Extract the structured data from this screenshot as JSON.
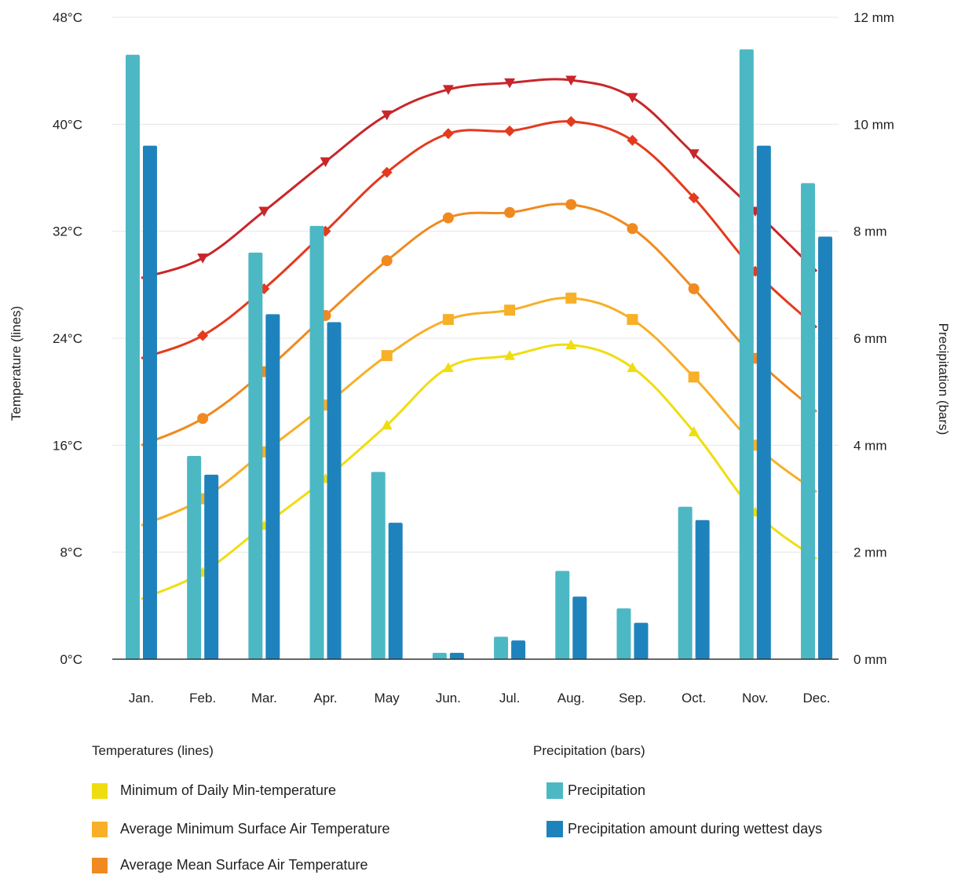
{
  "chart_data": {
    "type": "bar",
    "categories": [
      "Jan.",
      "Feb.",
      "Mar.",
      "Apr.",
      "May",
      "Jun.",
      "Jul.",
      "Aug.",
      "Sep.",
      "Oct.",
      "Nov.",
      "Dec."
    ],
    "y_left": {
      "label": "Temperature (lines)",
      "ylim": [
        0,
        48
      ],
      "ticks": [
        "0°C",
        "8°C",
        "16°C",
        "24°C",
        "32°C",
        "40°C",
        "48°C"
      ],
      "tick_values": [
        0,
        8,
        16,
        24,
        32,
        40,
        48
      ]
    },
    "y_right": {
      "label": "Precipitation (bars)",
      "ylim": [
        0,
        12
      ],
      "ticks": [
        "0 mm",
        "2 mm",
        "4 mm",
        "6 mm",
        "8 mm",
        "10 mm",
        "12 mm"
      ],
      "tick_values": [
        0,
        2,
        4,
        6,
        8,
        10,
        12
      ]
    },
    "grid": true,
    "bar_series": [
      {
        "name": "Precipitation",
        "color": "#4cb8c4",
        "values": [
          11.3,
          3.8,
          7.6,
          8.1,
          3.5,
          0.12,
          0.42,
          1.65,
          0.95,
          2.85,
          11.4,
          8.9
        ]
      },
      {
        "name": "Precipitation amount during wettest days",
        "color": "#1e83bd",
        "values": [
          9.6,
          3.45,
          6.45,
          6.3,
          2.55,
          0.12,
          0.35,
          1.17,
          0.68,
          2.6,
          9.6,
          7.9
        ]
      }
    ],
    "line_series": [
      {
        "name": "Minimum of Daily Min-temperature",
        "color": "#f0dd10",
        "marker": "triangle-up",
        "values": [
          4.5,
          6.5,
          10.0,
          13.5,
          17.5,
          21.8,
          22.7,
          23.5,
          21.8,
          17.0,
          11.0,
          7.5
        ]
      },
      {
        "name": "Average Minimum Surface Air Temperature",
        "color": "#f7b028",
        "marker": "square",
        "values": [
          10.0,
          12.0,
          15.5,
          19.0,
          22.7,
          25.4,
          26.1,
          27.0,
          25.4,
          21.1,
          16.0,
          12.5
        ]
      },
      {
        "name": "Average Mean Surface Air Temperature",
        "color": "#f08a20",
        "marker": "circle",
        "values": [
          16.0,
          18.0,
          21.5,
          25.7,
          29.8,
          33.0,
          33.4,
          34.0,
          32.2,
          27.7,
          22.5,
          18.5
        ]
      },
      {
        "name": "",
        "color": "#e43a1e",
        "marker": "diamond",
        "values": [
          22.5,
          24.2,
          27.7,
          32.0,
          36.4,
          39.3,
          39.5,
          40.2,
          38.8,
          34.5,
          29.0,
          24.8
        ]
      },
      {
        "name": "",
        "color": "#c8262a",
        "marker": "triangle-down",
        "values": [
          28.5,
          30.0,
          33.5,
          37.2,
          40.7,
          42.6,
          43.1,
          43.3,
          42.0,
          37.8,
          33.5,
          29.0
        ]
      }
    ]
  },
  "legend": {
    "temperatures_heading": "Temperatures (lines)",
    "precipitation_heading": "Precipitation (bars)",
    "temperature_items": [
      {
        "label": "Minimum of Daily Min-temperature",
        "color": "#f0dd10"
      },
      {
        "label": "Average Minimum Surface Air Temperature",
        "color": "#f7b028"
      },
      {
        "label": "Average Mean Surface Air Temperature",
        "color": "#f08a20"
      }
    ],
    "precipitation_items": [
      {
        "label": "Precipitation",
        "color": "#4cb8c4"
      },
      {
        "label": "Precipitation amount during wettest days",
        "color": "#1e83bd"
      }
    ]
  }
}
